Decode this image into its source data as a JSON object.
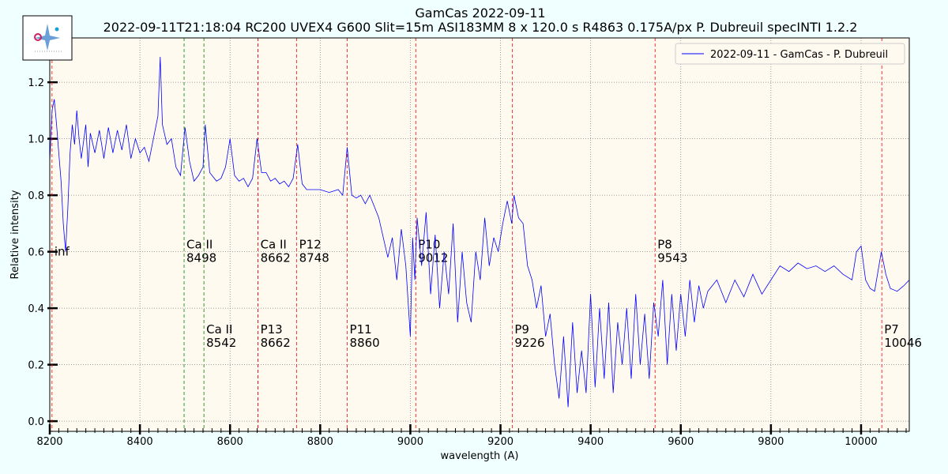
{
  "chart_data": {
    "type": "line",
    "title": "GamCas 2022-09-11",
    "subtitle": "2022-09-11T21:18:04 RC200 UVEX4 G600 Slit=15m  ASI183MM 8 x 120.0 s   R4863  0.175A/px  P. Dubreuil specINTI 1.2.2",
    "xlabel": "wavelength (A)",
    "ylabel": "Relative intensity",
    "xlim": [
      8200,
      10107
    ],
    "ylim": [
      -0.036,
      1.357
    ],
    "xticks": [
      8200,
      8400,
      8600,
      8800,
      9000,
      9200,
      9400,
      9600,
      9800,
      10000
    ],
    "x_minor_divisions": 10,
    "yticks": [
      {
        "value": 0,
        "label": "0.0"
      },
      {
        "value": 0.2,
        "label": "0.2"
      },
      {
        "value": 0.4,
        "label": "0.4"
      },
      {
        "value": 0.6,
        "label": "0.6"
      },
      {
        "value": 0.8,
        "label": "0.8"
      },
      {
        "value": 1,
        "label": "1.0"
      },
      {
        "value": 1.2,
        "label": "1.2"
      }
    ],
    "grid": true,
    "legend": "upper right",
    "x": [
      8200,
      8205,
      8210,
      8215,
      8220,
      8225,
      8230,
      8235,
      8240,
      8245,
      8250,
      8255,
      8260,
      8265,
      8270,
      8280,
      8285,
      8290,
      8300,
      8310,
      8320,
      8330,
      8340,
      8350,
      8360,
      8370,
      8380,
      8390,
      8400,
      8410,
      8420,
      8430,
      8440,
      8445,
      8450,
      8460,
      8470,
      8480,
      8490,
      8500,
      8510,
      8520,
      8530,
      8540,
      8545,
      8555,
      8570,
      8580,
      8590,
      8600,
      8610,
      8620,
      8630,
      8640,
      8650,
      8660,
      8670,
      8680,
      8690,
      8700,
      8710,
      8720,
      8730,
      8740,
      8750,
      8760,
      8770,
      8780,
      8800,
      8820,
      8840,
      8850,
      8860,
      8870,
      8880,
      8890,
      8900,
      8910,
      8920,
      8930,
      8940,
      8950,
      8960,
      8970,
      8980,
      8990,
      9000,
      9005,
      9010,
      9015,
      9025,
      9035,
      9045,
      9055,
      9065,
      9075,
      9085,
      9095,
      9105,
      9115,
      9125,
      9135,
      9145,
      9155,
      9165,
      9175,
      9185,
      9195,
      9205,
      9215,
      9225,
      9230,
      9240,
      9250,
      9260,
      9270,
      9280,
      9290,
      9300,
      9310,
      9320,
      9330,
      9340,
      9350,
      9360,
      9370,
      9380,
      9390,
      9400,
      9410,
      9420,
      9430,
      9440,
      9450,
      9460,
      9470,
      9480,
      9490,
      9500,
      9510,
      9520,
      9530,
      9540,
      9550,
      9560,
      9570,
      9580,
      9590,
      9600,
      9610,
      9620,
      9630,
      9640,
      9650,
      9660,
      9680,
      9700,
      9720,
      9740,
      9760,
      9780,
      9800,
      9820,
      9840,
      9860,
      9880,
      9900,
      9920,
      9940,
      9960,
      9980,
      9990,
      10000,
      10010,
      10020,
      10030,
      10045,
      10055,
      10065,
      10080,
      10095,
      10107
    ],
    "series": [
      {
        "name": "2022-09-11 - GamCas - P. Dubreuil",
        "color": "#0000ff",
        "values": [
          0.92,
          1.1,
          1.14,
          1.05,
          0.95,
          0.85,
          0.7,
          0.6,
          0.75,
          0.95,
          1.05,
          0.98,
          1.1,
          1.0,
          0.93,
          1.05,
          0.9,
          1.02,
          0.95,
          1.03,
          0.93,
          1.04,
          0.95,
          1.03,
          0.96,
          1.05,
          0.93,
          1.0,
          0.95,
          0.97,
          0.92,
          1.0,
          1.08,
          1.29,
          1.05,
          0.98,
          1.0,
          0.9,
          0.87,
          1.04,
          0.92,
          0.85,
          0.87,
          0.9,
          1.05,
          0.88,
          0.85,
          0.86,
          0.9,
          1.0,
          0.87,
          0.85,
          0.86,
          0.83,
          0.86,
          1.0,
          0.88,
          0.88,
          0.85,
          0.86,
          0.84,
          0.85,
          0.83,
          0.86,
          0.98,
          0.84,
          0.82,
          0.82,
          0.82,
          0.81,
          0.82,
          0.8,
          0.97,
          0.8,
          0.79,
          0.8,
          0.77,
          0.8,
          0.76,
          0.72,
          0.65,
          0.58,
          0.65,
          0.5,
          0.68,
          0.55,
          0.3,
          0.65,
          0.5,
          0.72,
          0.55,
          0.74,
          0.45,
          0.66,
          0.4,
          0.6,
          0.45,
          0.7,
          0.35,
          0.6,
          0.42,
          0.35,
          0.6,
          0.5,
          0.72,
          0.55,
          0.65,
          0.6,
          0.7,
          0.78,
          0.7,
          0.8,
          0.72,
          0.7,
          0.55,
          0.5,
          0.4,
          0.48,
          0.3,
          0.38,
          0.2,
          0.08,
          0.3,
          0.05,
          0.35,
          0.1,
          0.25,
          0.1,
          0.45,
          0.12,
          0.4,
          0.15,
          0.42,
          0.1,
          0.35,
          0.2,
          0.4,
          0.15,
          0.45,
          0.2,
          0.38,
          0.15,
          0.42,
          0.3,
          0.5,
          0.2,
          0.45,
          0.25,
          0.45,
          0.3,
          0.5,
          0.35,
          0.48,
          0.4,
          0.46,
          0.5,
          0.42,
          0.5,
          0.44,
          0.52,
          0.45,
          0.5,
          0.55,
          0.53,
          0.56,
          0.54,
          0.55,
          0.53,
          0.55,
          0.52,
          0.5,
          0.6,
          0.62,
          0.5,
          0.47,
          0.46,
          0.6,
          0.52,
          0.47,
          0.46,
          0.48,
          0.5
        ]
      }
    ],
    "annotations_upper": [
      {
        "label": "inf",
        "x": 8205,
        "color": "#ff0000"
      },
      {
        "name": "Ca II",
        "x": 8498,
        "color": "#008000"
      },
      {
        "name": "Ca II",
        "x": 8662,
        "color": "#ff0000"
      },
      {
        "name": "P12",
        "x": 8748,
        "color": "#ff0000"
      },
      {
        "name": "P10",
        "x": 9012,
        "color": "#ff0000"
      },
      {
        "name": "P8",
        "x": 9543,
        "color": "#ff0000"
      }
    ],
    "annotations_lower": [
      {
        "name": "Ca II",
        "x": 8542,
        "color": "#008000"
      },
      {
        "name": "P13",
        "x": 8662,
        "color": "#ff0000"
      },
      {
        "name": "P11",
        "x": 8860,
        "color": "#ff0000"
      },
      {
        "name": "P9",
        "x": 9226,
        "color": "#ff0000"
      },
      {
        "name": "P7",
        "x": 10046,
        "color": "#ff0000"
      }
    ]
  }
}
